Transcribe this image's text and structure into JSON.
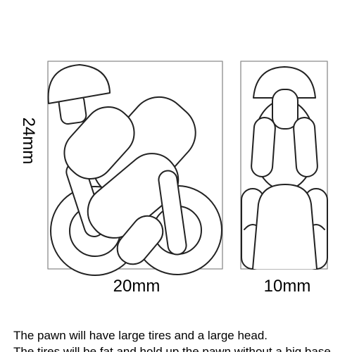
{
  "diagram": {
    "height_label": "24mm",
    "width_label": "20mm",
    "depth_label": "10mm"
  },
  "caption": {
    "line1": "The pawn will have large tires and a large head.",
    "line2": "The tires will be fat and hold up the pawn without a big base."
  }
}
